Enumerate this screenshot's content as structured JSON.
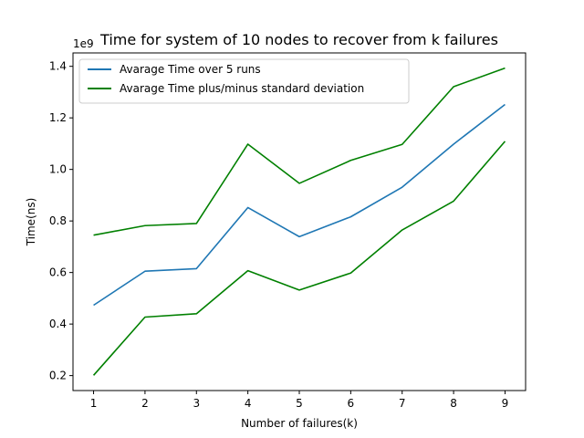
{
  "chart_data": {
    "type": "line",
    "title": "Time for system of 10 nodes to recover from k failures",
    "xlabel": "Number of failures(k)",
    "ylabel": "Time(ns)",
    "y_offset_label": "1e9",
    "x": [
      1,
      2,
      3,
      4,
      5,
      6,
      7,
      8,
      9
    ],
    "xticks": [
      "1",
      "2",
      "3",
      "4",
      "5",
      "6",
      "7",
      "8",
      "9"
    ],
    "yticks": [
      0.2,
      0.4,
      0.6,
      0.8,
      1.0,
      1.2,
      1.4
    ],
    "ytick_labels": [
      "0.2",
      "0.4",
      "0.6",
      "0.8",
      "1.0",
      "1.2",
      "1.4"
    ],
    "xlim": [
      0.6,
      9.4
    ],
    "ylim": [
      0.142,
      1.452
    ],
    "grid": false,
    "legend_position": "upper-left",
    "series": [
      {
        "name": "Avarage Time over 5 runs",
        "color": "#1f77b4",
        "values": [
          0.473,
          0.605,
          0.615,
          0.852,
          0.739,
          0.816,
          0.931,
          1.098,
          1.252
        ]
      },
      {
        "name": "Avarage Time plus/minus standard deviation",
        "color": "#008000",
        "values": [
          0.745,
          0.782,
          0.79,
          1.098,
          0.946,
          1.035,
          1.097,
          1.321,
          1.393
        ]
      },
      {
        "name": "",
        "color": "#008000",
        "values": [
          0.201,
          0.427,
          0.44,
          0.607,
          0.532,
          0.598,
          0.765,
          0.877,
          1.109
        ]
      }
    ]
  }
}
